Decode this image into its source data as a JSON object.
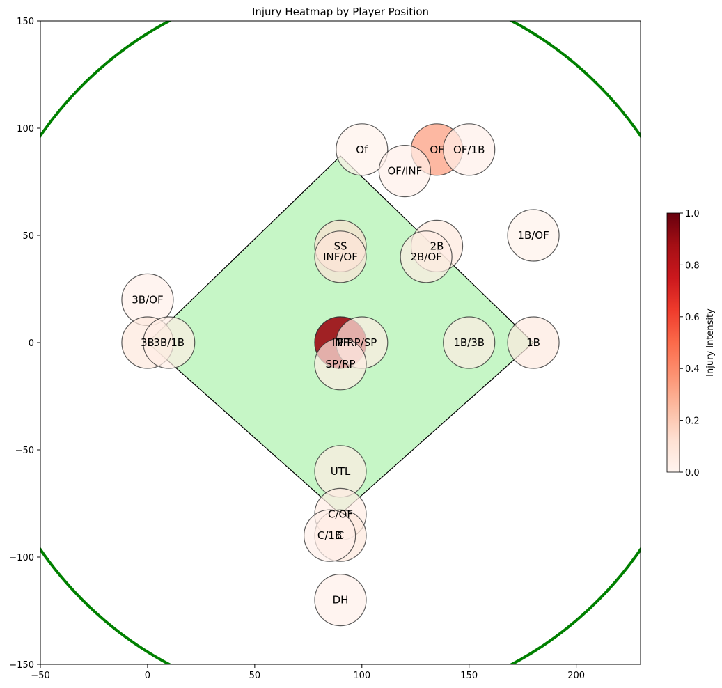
{
  "chart_data": {
    "type": "scatter",
    "title": "Injury Heatmap by Player Position",
    "xlabel": "",
    "ylabel": "",
    "xlim": [
      -50,
      230
    ],
    "ylim": [
      -150,
      150
    ],
    "x_ticks": [
      -50,
      0,
      50,
      100,
      150,
      200
    ],
    "y_ticks": [
      -150,
      -100,
      -50,
      0,
      50,
      100,
      150
    ],
    "grid": false,
    "field": {
      "infield_diamond": [
        [
          90,
          -80
        ],
        [
          180,
          0
        ],
        [
          90,
          87
        ],
        [
          0,
          0
        ]
      ],
      "infield_color": "#c6f6c6",
      "outfield_arc_color": "#008000",
      "outfield_arc_center": [
        90,
        0
      ],
      "outfield_arc_radius": 170
    },
    "colorbar": {
      "label": "Injury Intensity",
      "colormap": "Reds",
      "min": 0.0,
      "max": 1.0,
      "ticks": [
        "0.0",
        "0.2",
        "0.4",
        "0.6",
        "0.8",
        "1.0"
      ]
    },
    "points": [
      {
        "label": "Of",
        "x": 100,
        "y": 90,
        "intensity": 0.02
      },
      {
        "label": "OF",
        "x": 135,
        "y": 90,
        "intensity": 0.35
      },
      {
        "label": "OF/1B",
        "x": 150,
        "y": 90,
        "intensity": 0.03
      },
      {
        "label": "OF/INF",
        "x": 120,
        "y": 80,
        "intensity": 0.03
      },
      {
        "label": "1B/OF",
        "x": 180,
        "y": 50,
        "intensity": 0.02
      },
      {
        "label": "SS",
        "x": 90,
        "y": 45,
        "intensity": 0.12
      },
      {
        "label": "2B",
        "x": 135,
        "y": 45,
        "intensity": 0.08
      },
      {
        "label": "INF/OF",
        "x": 90,
        "y": 40,
        "intensity": 0.1
      },
      {
        "label": "2B/OF",
        "x": 130,
        "y": 40,
        "intensity": 0.05
      },
      {
        "label": "3B/OF",
        "x": 0,
        "y": 20,
        "intensity": 0.03
      },
      {
        "label": "3B",
        "x": 0,
        "y": 0,
        "intensity": 0.08
      },
      {
        "label": "3B/1B",
        "x": 10,
        "y": 0,
        "intensity": 0.04
      },
      {
        "label": "P",
        "x": 90,
        "y": 0,
        "intensity": 1.0
      },
      {
        "label": "INF",
        "x": 90,
        "y": 0,
        "intensity": 0.85
      },
      {
        "label": "RP/SP",
        "x": 100,
        "y": 0,
        "intensity": 0.05
      },
      {
        "label": "1B/3B",
        "x": 150,
        "y": 0,
        "intensity": 0.05
      },
      {
        "label": "1B",
        "x": 180,
        "y": 0,
        "intensity": 0.07
      },
      {
        "label": "SP/RP",
        "x": 90,
        "y": -10,
        "intensity": 0.05
      },
      {
        "label": "UTL",
        "x": 90,
        "y": -60,
        "intensity": 0.05
      },
      {
        "label": "C/OF",
        "x": 90,
        "y": -80,
        "intensity": 0.05
      },
      {
        "label": "C",
        "x": 90,
        "y": -90,
        "intensity": 0.08
      },
      {
        "label": "C/1B",
        "x": 85,
        "y": -90,
        "intensity": 0.03
      },
      {
        "label": "DH",
        "x": 90,
        "y": -120,
        "intensity": 0.03
      }
    ]
  }
}
